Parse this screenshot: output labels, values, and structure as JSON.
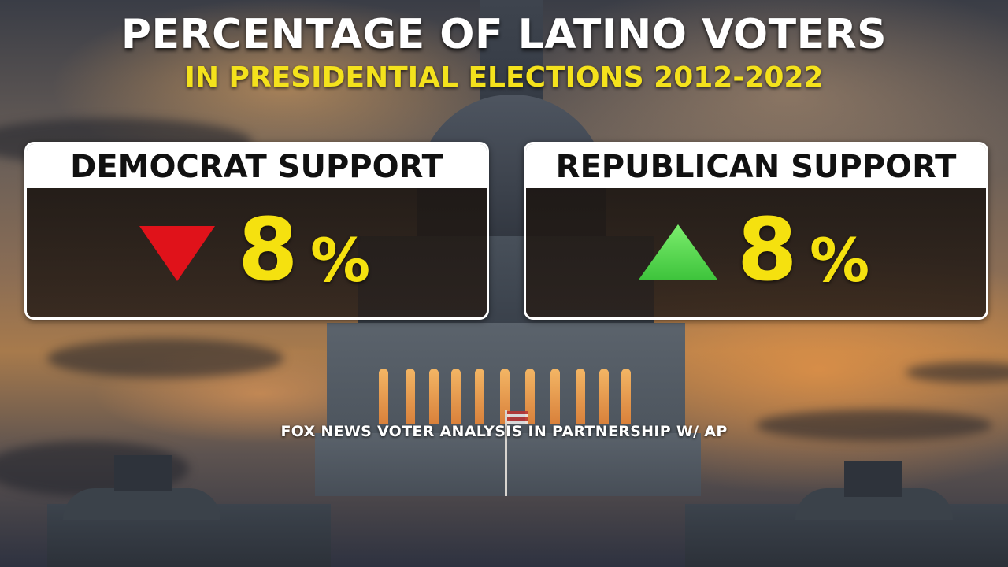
{
  "title": "PERCENTAGE OF LATINO VOTERS",
  "subtitle": "IN PRESIDENTIAL ELECTIONS 2012-2022",
  "panels": {
    "democrat": {
      "label": "DEMOCRAT SUPPORT",
      "direction": "down",
      "arrow_color": "#e0121a",
      "value": "8",
      "unit": "%"
    },
    "republican": {
      "label": "REPUBLICAN SUPPORT",
      "direction": "up",
      "arrow_color": "#3ec43c",
      "value": "8",
      "unit": "%"
    }
  },
  "source": "FOX NEWS VOTER ANALYSIS IN PARTNERSHIP W/ AP",
  "colors": {
    "title": "#ffffff",
    "subtitle": "#f4e21c",
    "value": "#f5e10f"
  }
}
